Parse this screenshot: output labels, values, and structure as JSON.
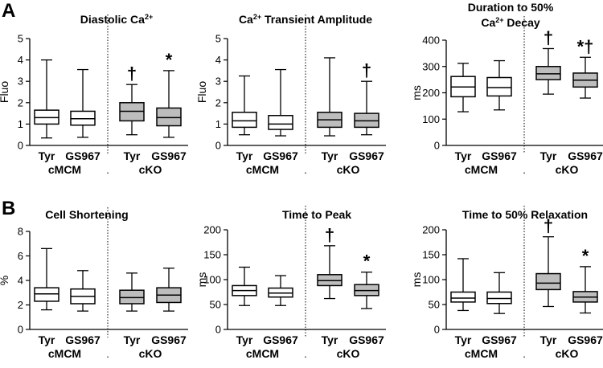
{
  "panels": [
    {
      "letter": "A"
    },
    {
      "letter": "B"
    }
  ],
  "chart_data": [
    {
      "type": "boxplot",
      "title": [
        "Diastolic Ca",
        "2+"
      ],
      "ylabel": "Fluo",
      "ylim": [
        0,
        5
      ],
      "yticks": [
        0,
        1,
        2,
        3,
        4,
        5
      ],
      "categories": [
        "Tyr",
        "GS967",
        "Tyr",
        "GS967"
      ],
      "groups": [
        {
          "name": "cMCM",
          "span": [
            0,
            1
          ]
        },
        {
          "name": "cKO",
          "span": [
            2,
            3
          ]
        }
      ],
      "separator": ".",
      "series": [
        {
          "name": "cMCM Tyr",
          "min": 0.35,
          "q1": 1.0,
          "median": 1.3,
          "q3": 1.65,
          "max": 4.0,
          "fill": "#ffffff",
          "mark": ""
        },
        {
          "name": "cMCM GS967",
          "min": 0.38,
          "q1": 0.95,
          "median": 1.25,
          "q3": 1.6,
          "max": 3.55,
          "fill": "#ffffff",
          "mark": ""
        },
        {
          "name": "cKO Tyr",
          "min": 0.5,
          "q1": 1.15,
          "median": 1.6,
          "q3": 2.0,
          "max": 2.85,
          "fill": "#bdbdbd",
          "mark": "†"
        },
        {
          "name": "cKO GS967",
          "min": 0.38,
          "q1": 0.92,
          "median": 1.3,
          "q3": 1.75,
          "max": 3.5,
          "fill": "#bdbdbd",
          "mark": "*"
        }
      ]
    },
    {
      "type": "boxplot",
      "title": [
        "Ca",
        "2+",
        " Transient Amplitude"
      ],
      "ylabel": "Fluo",
      "ylim": [
        0,
        5
      ],
      "yticks": [
        0,
        1,
        2,
        3,
        4,
        5
      ],
      "categories": [
        "Tyr",
        "GS967",
        "Tyr",
        "GS967"
      ],
      "groups": [
        {
          "name": "cMCM",
          "span": [
            0,
            1
          ]
        },
        {
          "name": "cKO",
          "span": [
            2,
            3
          ]
        }
      ],
      "separator": ".",
      "series": [
        {
          "name": "cMCM Tyr",
          "min": 0.5,
          "q1": 0.85,
          "median": 1.15,
          "q3": 1.55,
          "max": 3.25,
          "fill": "#ffffff",
          "mark": ""
        },
        {
          "name": "cMCM GS967",
          "min": 0.45,
          "q1": 0.75,
          "median": 1.0,
          "q3": 1.4,
          "max": 3.55,
          "fill": "#ffffff",
          "mark": ""
        },
        {
          "name": "cKO Tyr",
          "min": 0.45,
          "q1": 0.85,
          "median": 1.2,
          "q3": 1.55,
          "max": 4.1,
          "fill": "#bdbdbd",
          "mark": ""
        },
        {
          "name": "cKO GS967",
          "min": 0.5,
          "q1": 0.85,
          "median": 1.15,
          "q3": 1.5,
          "max": 3.0,
          "fill": "#bdbdbd",
          "mark": "†"
        }
      ]
    },
    {
      "type": "boxplot",
      "title": [
        "Duration to 50%",
        "Ca",
        "2+",
        " Decay"
      ],
      "ylabel": "ms",
      "ylim": [
        0,
        400
      ],
      "yticks": [
        0,
        100,
        200,
        300,
        400
      ],
      "categories": [
        "Tyr",
        "GS967",
        "Tyr",
        "GS967"
      ],
      "groups": [
        {
          "name": "cMCM",
          "span": [
            0,
            1
          ]
        },
        {
          "name": "cKO",
          "span": [
            2,
            3
          ]
        }
      ],
      "separator": ".",
      "series": [
        {
          "name": "cMCM Tyr",
          "min": 128,
          "q1": 185,
          "median": 222,
          "q3": 262,
          "max": 312,
          "fill": "#ffffff",
          "mark": ""
        },
        {
          "name": "cMCM GS967",
          "min": 135,
          "q1": 188,
          "median": 220,
          "q3": 258,
          "max": 322,
          "fill": "#ffffff",
          "mark": ""
        },
        {
          "name": "cKO Tyr",
          "min": 195,
          "q1": 250,
          "median": 272,
          "q3": 300,
          "max": 368,
          "fill": "#bdbdbd",
          "mark": "†"
        },
        {
          "name": "cKO GS967",
          "min": 180,
          "q1": 222,
          "median": 248,
          "q3": 275,
          "max": 335,
          "fill": "#bdbdbd",
          "mark": "*†"
        }
      ]
    },
    {
      "type": "boxplot",
      "title": [
        "Cell Shortening"
      ],
      "ylabel": "%",
      "ylim": [
        0,
        8
      ],
      "yticks": [
        0,
        2,
        4,
        6,
        8
      ],
      "categories": [
        "Tyr",
        "GS967",
        "Tyr",
        "GS967"
      ],
      "groups": [
        {
          "name": "cMCM",
          "span": [
            0,
            1
          ]
        },
        {
          "name": "cKO",
          "span": [
            2,
            3
          ]
        }
      ],
      "separator": ".",
      "series": [
        {
          "name": "cMCM Tyr",
          "min": 1.6,
          "q1": 2.3,
          "median": 2.9,
          "q3": 3.4,
          "max": 6.6,
          "fill": "#ffffff",
          "mark": ""
        },
        {
          "name": "cMCM GS967",
          "min": 1.5,
          "q1": 2.1,
          "median": 2.7,
          "q3": 3.3,
          "max": 4.8,
          "fill": "#ffffff",
          "mark": ""
        },
        {
          "name": "cKO Tyr",
          "min": 1.5,
          "q1": 2.1,
          "median": 2.6,
          "q3": 3.2,
          "max": 4.6,
          "fill": "#bdbdbd",
          "mark": ""
        },
        {
          "name": "cKO GS967",
          "min": 1.5,
          "q1": 2.2,
          "median": 2.8,
          "q3": 3.4,
          "max": 5.0,
          "fill": "#bdbdbd",
          "mark": ""
        }
      ]
    },
    {
      "type": "boxplot",
      "title": [
        "Time to Peak"
      ],
      "ylabel": "ms",
      "ylim": [
        0,
        200
      ],
      "yticks": [
        0,
        50,
        100,
        150,
        200
      ],
      "categories": [
        "Tyr",
        "GS967",
        "Tyr",
        "GS967"
      ],
      "groups": [
        {
          "name": "cMCM",
          "span": [
            0,
            1
          ]
        },
        {
          "name": "cKO",
          "span": [
            2,
            3
          ]
        }
      ],
      "separator": ".",
      "series": [
        {
          "name": "cMCM Tyr",
          "min": 48,
          "q1": 68,
          "median": 78,
          "q3": 88,
          "max": 125,
          "fill": "#ffffff",
          "mark": ""
        },
        {
          "name": "cMCM GS967",
          "min": 48,
          "q1": 65,
          "median": 73,
          "q3": 83,
          "max": 108,
          "fill": "#ffffff",
          "mark": ""
        },
        {
          "name": "cKO Tyr",
          "min": 62,
          "q1": 88,
          "median": 98,
          "q3": 110,
          "max": 168,
          "fill": "#bdbdbd",
          "mark": "†"
        },
        {
          "name": "cKO GS967",
          "min": 42,
          "q1": 68,
          "median": 78,
          "q3": 90,
          "max": 115,
          "fill": "#bdbdbd",
          "mark": "*"
        }
      ]
    },
    {
      "type": "boxplot",
      "title": [
        "Time to 50% Relaxation"
      ],
      "ylabel": "ms",
      "ylim": [
        0,
        200
      ],
      "yticks": [
        0,
        50,
        100,
        150,
        200
      ],
      "categories": [
        "Tyr",
        "GS967",
        "Tyr",
        "GS967"
      ],
      "groups": [
        {
          "name": "cMCM",
          "span": [
            0,
            1
          ]
        },
        {
          "name": "cKO",
          "span": [
            2,
            3
          ]
        }
      ],
      "separator": ".",
      "series": [
        {
          "name": "cMCM Tyr",
          "min": 38,
          "q1": 55,
          "median": 63,
          "q3": 75,
          "max": 142,
          "fill": "#ffffff",
          "mark": ""
        },
        {
          "name": "cMCM GS967",
          "min": 32,
          "q1": 52,
          "median": 62,
          "q3": 75,
          "max": 114,
          "fill": "#ffffff",
          "mark": ""
        },
        {
          "name": "cKO Tyr",
          "min": 46,
          "q1": 80,
          "median": 93,
          "q3": 112,
          "max": 186,
          "fill": "#bdbdbd",
          "mark": "†"
        },
        {
          "name": "cKO GS967",
          "min": 33,
          "q1": 55,
          "median": 65,
          "q3": 76,
          "max": 126,
          "fill": "#bdbdbd",
          "mark": "*"
        }
      ]
    }
  ]
}
